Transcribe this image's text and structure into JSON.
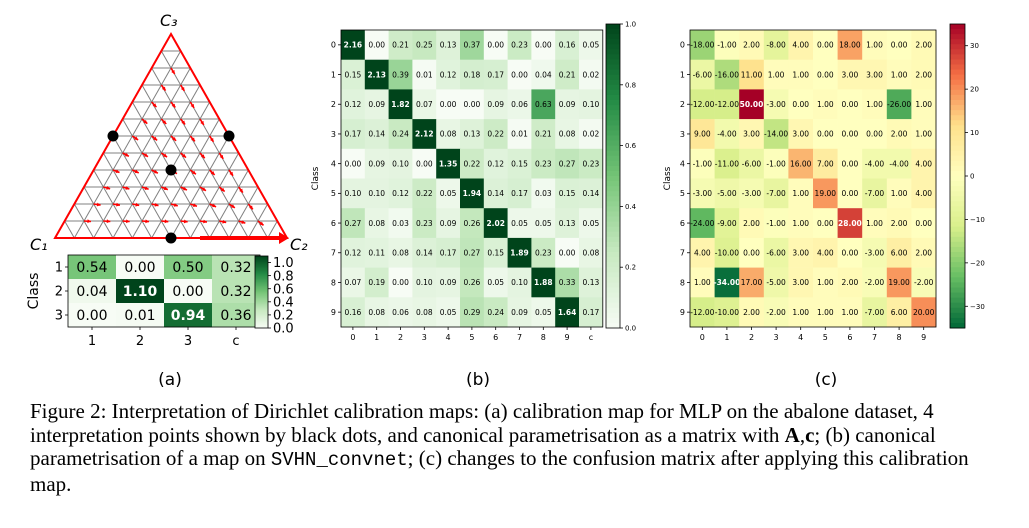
{
  "panel_labels": [
    "(a)",
    "(b)",
    "(c)"
  ],
  "simplex": {
    "vertex_labels": [
      "C₁",
      "C₂",
      "C₃"
    ]
  },
  "caption": {
    "prefix": "Figure 2:",
    "text_1": "Interpretation of Dirichlet calibration maps: (a) calibration map for MLP on the abalone dataset, 4 interpretation points shown by black dots, and canonical parametrisation as a matrix with",
    "bold_A": "A",
    "sep": ",",
    "bold_c": "c",
    "text_2": "; (b) canonical parametrisation of a map on",
    "code": "SVHN_convnet",
    "text_3": "; (c) changes to the confusion matrix after applying this calibration map."
  },
  "colors": {
    "greens_low": "#f7fcf5",
    "greens_high": "#00441b",
    "rdylgn_low": "#006837",
    "rdylgn_mid": "#ffffbf",
    "rdylgn_high": "#a50026",
    "arrow": "#ff0000",
    "grid": "#808080"
  },
  "chart_data": [
    {
      "type": "heatmap",
      "panel": "a",
      "ylabel": "Class",
      "row_labels": [
        "1",
        "2",
        "3"
      ],
      "col_labels": [
        "1",
        "2",
        "3",
        "c"
      ],
      "values": [
        [
          0.54,
          0.0,
          0.5,
          0.32
        ],
        [
          0.04,
          1.1,
          0.0,
          0.32
        ],
        [
          0.0,
          0.01,
          0.94,
          0.36
        ]
      ],
      "value_labels": [
        [
          "0.54",
          "0.00",
          "0.50",
          "0.32"
        ],
        [
          "0.04",
          "1.10",
          "0.00",
          "0.32"
        ],
        [
          "0.00",
          "0.01",
          "0.94",
          "0.36"
        ]
      ],
      "colorscale": "Greens",
      "vmin": 0.0,
      "vmax": 1.1,
      "colorbar_ticks": [
        "0.0",
        "0.2",
        "0.4",
        "0.6",
        "0.8",
        "1.0"
      ]
    },
    {
      "type": "heatmap",
      "panel": "b",
      "ylabel": "Class",
      "row_labels": [
        "0",
        "1",
        "2",
        "3",
        "4",
        "5",
        "6",
        "7",
        "8",
        "9"
      ],
      "col_labels": [
        "0",
        "1",
        "2",
        "3",
        "4",
        "5",
        "6",
        "7",
        "8",
        "9",
        "c"
      ],
      "values": [
        [
          2.16,
          0.0,
          0.21,
          0.25,
          0.13,
          0.37,
          0.0,
          0.23,
          0.0,
          0.16,
          0.05
        ],
        [
          0.15,
          2.13,
          0.39,
          0.01,
          0.12,
          0.18,
          0.17,
          0.0,
          0.04,
          0.21,
          0.02
        ],
        [
          0.12,
          0.09,
          1.82,
          0.07,
          0.0,
          0.0,
          0.09,
          0.06,
          0.63,
          0.09,
          0.1
        ],
        [
          0.17,
          0.14,
          0.24,
          2.12,
          0.08,
          0.13,
          0.22,
          0.01,
          0.21,
          0.08,
          0.02
        ],
        [
          0.0,
          0.09,
          0.1,
          0.0,
          1.35,
          0.22,
          0.12,
          0.15,
          0.23,
          0.27,
          0.23
        ],
        [
          0.1,
          0.1,
          0.12,
          0.22,
          0.05,
          1.94,
          0.14,
          0.17,
          0.03,
          0.15,
          0.14
        ],
        [
          0.27,
          0.08,
          0.03,
          0.23,
          0.09,
          0.26,
          2.02,
          0.05,
          0.05,
          0.13,
          0.05
        ],
        [
          0.12,
          0.11,
          0.08,
          0.14,
          0.17,
          0.27,
          0.15,
          1.89,
          0.23,
          0.0,
          0.08
        ],
        [
          0.07,
          0.19,
          0.0,
          0.1,
          0.09,
          0.26,
          0.05,
          0.1,
          1.88,
          0.33,
          0.13
        ],
        [
          0.16,
          0.08,
          0.06,
          0.08,
          0.05,
          0.29,
          0.24,
          0.09,
          0.05,
          1.64,
          0.17
        ]
      ],
      "value_labels": [
        [
          "2.16",
          "0.00",
          "0.21",
          "0.25",
          "0.13",
          "0.37",
          "0.00",
          "0.23",
          "0.00",
          "0.16",
          "0.05"
        ],
        [
          "0.15",
          "2.13",
          "0.39",
          "0.01",
          "0.12",
          "0.18",
          "0.17",
          "0.00",
          "0.04",
          "0.21",
          "0.02"
        ],
        [
          "0.12",
          "0.09",
          "1.82",
          "0.07",
          "0.00",
          "0.00",
          "0.09",
          "0.06",
          "0.63",
          "0.09",
          "0.10"
        ],
        [
          "0.17",
          "0.14",
          "0.24",
          "2.12",
          "0.08",
          "0.13",
          "0.22",
          "0.01",
          "0.21",
          "0.08",
          "0.02"
        ],
        [
          "0.00",
          "0.09",
          "0.10",
          "0.00",
          "1.35",
          "0.22",
          "0.12",
          "0.15",
          "0.23",
          "0.27",
          "0.23"
        ],
        [
          "0.10",
          "0.10",
          "0.12",
          "0.22",
          "0.05",
          "1.94",
          "0.14",
          "0.17",
          "0.03",
          "0.15",
          "0.14"
        ],
        [
          "0.27",
          "0.08",
          "0.03",
          "0.23",
          "0.09",
          "0.26",
          "2.02",
          "0.05",
          "0.05",
          "0.13",
          "0.05"
        ],
        [
          "0.12",
          "0.11",
          "0.08",
          "0.14",
          "0.17",
          "0.27",
          "0.15",
          "1.89",
          "0.23",
          "0.00",
          "0.08"
        ],
        [
          "0.07",
          "0.19",
          "0.00",
          "0.10",
          "0.09",
          "0.26",
          "0.05",
          "0.10",
          "1.88",
          "0.33",
          "0.13"
        ],
        [
          "0.16",
          "0.08",
          "0.06",
          "0.08",
          "0.05",
          "0.29",
          "0.24",
          "0.09",
          "0.05",
          "1.64",
          "0.17"
        ]
      ],
      "colorscale": "Greens",
      "vmin": 0.0,
      "vmax": 1.0,
      "colorbar_ticks": [
        "0.0",
        "0.2",
        "0.4",
        "0.6",
        "0.8",
        "1.0"
      ]
    },
    {
      "type": "heatmap",
      "panel": "c",
      "ylabel": "Class",
      "row_labels": [
        "0",
        "1",
        "2",
        "3",
        "4",
        "5",
        "6",
        "7",
        "8",
        "9"
      ],
      "col_labels": [
        "0",
        "1",
        "2",
        "3",
        "4",
        "5",
        "6",
        "7",
        "8",
        "9"
      ],
      "values": [
        [
          -18,
          -1,
          2,
          -8,
          4,
          0,
          18,
          1,
          0,
          2
        ],
        [
          -6,
          -16,
          11,
          1,
          1,
          0,
          3,
          3,
          1,
          2
        ],
        [
          -12,
          -12,
          50,
          -3,
          0,
          1,
          0,
          1,
          -26,
          1
        ],
        [
          9,
          -4,
          3,
          -14,
          3,
          0,
          0,
          0,
          2,
          1
        ],
        [
          -1,
          -11,
          -6,
          -1,
          16,
          7,
          0,
          -4,
          -4,
          4
        ],
        [
          -3,
          -5,
          -3,
          -7,
          1,
          19,
          0,
          -7,
          1,
          4
        ],
        [
          -24,
          -9,
          2,
          -1,
          1,
          0,
          28,
          1,
          2,
          0
        ],
        [
          4,
          -10,
          0,
          -6,
          3,
          4,
          0,
          -3,
          6,
          2
        ],
        [
          1,
          -34,
          17,
          -5,
          3,
          1,
          2,
          -2,
          19,
          -2
        ],
        [
          -12,
          -10,
          2,
          -2,
          1,
          1,
          1,
          -7,
          6,
          20
        ]
      ],
      "value_labels": [
        [
          "-18.00",
          "-1.00",
          "2.00",
          "-8.00",
          "4.00",
          "0.00",
          "18.00",
          "1.00",
          "0.00",
          "2.00"
        ],
        [
          "-6.00",
          "-16.00",
          "11.00",
          "1.00",
          "1.00",
          "0.00",
          "3.00",
          "3.00",
          "1.00",
          "2.00"
        ],
        [
          "-12.00",
          "-12.00",
          "50.00",
          "-3.00",
          "0.00",
          "1.00",
          "0.00",
          "1.00",
          "-26.00",
          "1.00"
        ],
        [
          "9.00",
          "-4.00",
          "3.00",
          "-14.00",
          "3.00",
          "0.00",
          "0.00",
          "0.00",
          "2.00",
          "1.00"
        ],
        [
          "-1.00",
          "-11.00",
          "-6.00",
          "-1.00",
          "16.00",
          "7.00",
          "0.00",
          "-4.00",
          "-4.00",
          "4.00"
        ],
        [
          "-3.00",
          "-5.00",
          "-3.00",
          "-7.00",
          "1.00",
          "19.00",
          "0.00",
          "-7.00",
          "1.00",
          "4.00"
        ],
        [
          "-24.00",
          "-9.00",
          "2.00",
          "-1.00",
          "1.00",
          "0.00",
          "28.00",
          "1.00",
          "2.00",
          "0.00"
        ],
        [
          "4.00",
          "-10.00",
          "0.00",
          "-6.00",
          "3.00",
          "4.00",
          "0.00",
          "-3.00",
          "6.00",
          "2.00"
        ],
        [
          "1.00",
          "-34.00",
          "17.00",
          "-5.00",
          "3.00",
          "1.00",
          "2.00",
          "-2.00",
          "19.00",
          "-2.00"
        ],
        [
          "-12.00",
          "-10.00",
          "2.00",
          "-2.00",
          "1.00",
          "1.00",
          "1.00",
          "-7.00",
          "6.00",
          "20.00"
        ]
      ],
      "colorscale": "RdYlGn_r",
      "vmin": -35,
      "vmax": 35,
      "colorbar_ticks": [
        "30",
        "20",
        "10",
        "0",
        "−10",
        "−20",
        "−30"
      ]
    }
  ]
}
